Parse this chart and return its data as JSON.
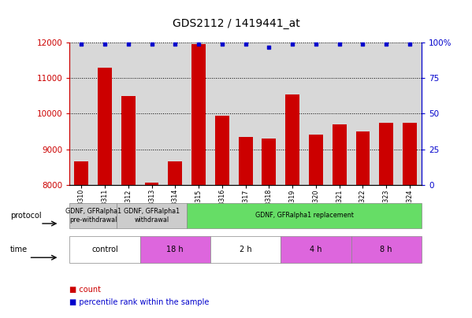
{
  "title": "GDS2112 / 1419441_at",
  "samples": [
    "GSM108310",
    "GSM108311",
    "GSM108312",
    "GSM108313",
    "GSM108314",
    "GSM108315",
    "GSM108316",
    "GSM108317",
    "GSM108318",
    "GSM108319",
    "GSM108320",
    "GSM108321",
    "GSM108322",
    "GSM108323",
    "GSM108324"
  ],
  "counts": [
    8650,
    11300,
    10500,
    8050,
    8650,
    11950,
    9950,
    9350,
    9300,
    10550,
    9400,
    9700,
    9500,
    9750,
    9750
  ],
  "percentile": [
    99,
    99,
    99,
    99,
    99,
    99,
    99,
    99,
    97,
    99,
    99,
    99,
    99,
    99,
    99
  ],
  "ylim_left": [
    8000,
    12000
  ],
  "ylim_right": [
    0,
    100
  ],
  "yticks_left": [
    8000,
    9000,
    10000,
    11000,
    12000
  ],
  "yticks_right": [
    0,
    25,
    50,
    75,
    100
  ],
  "bar_color": "#cc0000",
  "dot_color": "#0000cc",
  "bg_color": "#ffffff",
  "plot_bg": "#d8d8d8",
  "protocol_groups": [
    {
      "label": "GDNF, GFRalpha1\npre-withdrawal",
      "start": 0,
      "end": 2,
      "color": "#cccccc"
    },
    {
      "label": "GDNF, GFRalpha1\nwithdrawal",
      "start": 2,
      "end": 5,
      "color": "#cccccc"
    },
    {
      "label": "GDNF, GFRalpha1 replacement",
      "start": 5,
      "end": 15,
      "color": "#66dd66"
    }
  ],
  "time_groups": [
    {
      "label": "control",
      "start": 0,
      "end": 3,
      "color": "#ffffff"
    },
    {
      "label": "18 h",
      "start": 3,
      "end": 6,
      "color": "#dd66dd"
    },
    {
      "label": "2 h",
      "start": 6,
      "end": 9,
      "color": "#ffffff"
    },
    {
      "label": "4 h",
      "start": 9,
      "end": 12,
      "color": "#dd66dd"
    },
    {
      "label": "8 h",
      "start": 12,
      "end": 15,
      "color": "#dd66dd"
    }
  ]
}
